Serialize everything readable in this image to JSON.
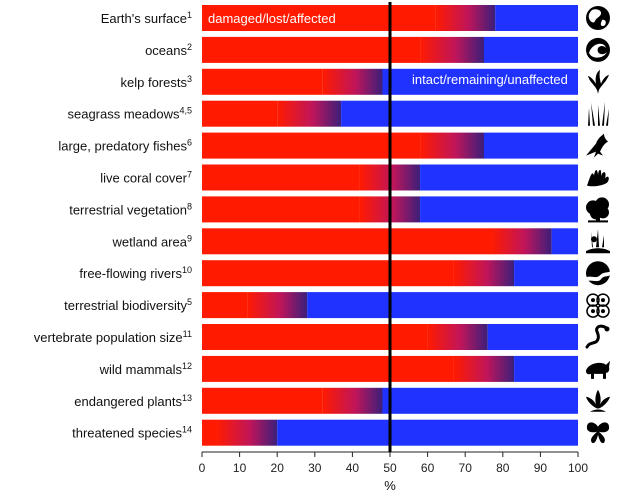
{
  "chart_data": {
    "type": "bar",
    "orientation": "horizontal",
    "stacked": true,
    "xlabel": "%",
    "xlim": [
      0,
      100
    ],
    "xticks": [
      "0",
      "10",
      "20",
      "30",
      "40",
      "50",
      "60",
      "70",
      "80",
      "90",
      "100"
    ],
    "reference_line_x": 50,
    "annotations": {
      "damaged": "damaged/lost/affected",
      "intact": "intact/remaining/unaffected"
    },
    "colors": {
      "damaged": "#ff1a00",
      "intact": "#1f32ff",
      "transition": "#3b1f7a",
      "reference_line": "#000000"
    },
    "categories": [
      {
        "label": "Earth's surface",
        "ref": "1",
        "icon": "globe-icon"
      },
      {
        "label": "oceans",
        "ref": "2",
        "icon": "wave-icon"
      },
      {
        "label": "kelp forests",
        "ref": "3",
        "icon": "kelp-icon"
      },
      {
        "label": "seagrass meadows",
        "ref": "4,5",
        "icon": "seagrass-icon"
      },
      {
        "label": "large, predatory fishes",
        "ref": "6",
        "icon": "marlin-icon"
      },
      {
        "label": "live coral cover",
        "ref": "7",
        "icon": "coral-icon"
      },
      {
        "label": "terrestrial vegetation",
        "ref": "8",
        "icon": "tree-icon"
      },
      {
        "label": "wetland area",
        "ref": "9",
        "icon": "wetland-icon"
      },
      {
        "label": "free-flowing rivers",
        "ref": "10",
        "icon": "river-icon"
      },
      {
        "label": "terrestrial biodiversity",
        "ref": "5",
        "icon": "biodiversity-icon"
      },
      {
        "label": "vertebrate population size",
        "ref": "11",
        "icon": "snake-icon"
      },
      {
        "label": "wild mammals",
        "ref": "12",
        "icon": "rhino-icon"
      },
      {
        "label": "endangered plants",
        "ref": "13",
        "icon": "lotus-icon"
      },
      {
        "label": "threatened species",
        "ref": "14",
        "icon": "butterfly-icon"
      }
    ],
    "series": [
      {
        "name": "damaged/lost/affected",
        "values_range": [
          [
            62,
            78
          ],
          [
            58,
            75
          ],
          [
            32,
            48
          ],
          [
            20,
            37
          ],
          [
            58,
            75
          ],
          [
            42,
            58
          ],
          [
            42,
            58
          ],
          [
            77,
            93
          ],
          [
            67,
            83
          ],
          [
            12,
            28
          ],
          [
            60,
            76
          ],
          [
            67,
            83
          ],
          [
            32,
            48
          ],
          [
            4,
            20
          ]
        ]
      }
    ]
  }
}
